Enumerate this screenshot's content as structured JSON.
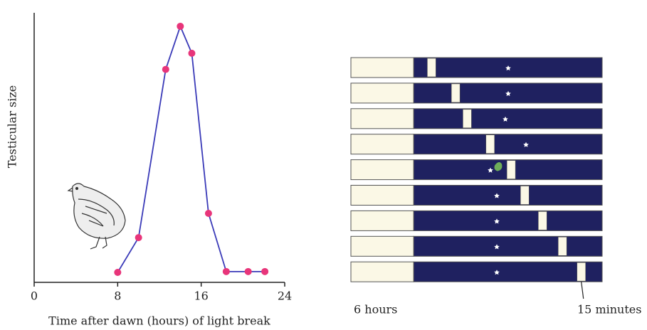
{
  "chart_data": [
    {
      "type": "line",
      "y_label": "Testicular size",
      "x_label": "Time after dawn (hours) of light break",
      "x": [
        8,
        10,
        12.6,
        14,
        15.1,
        16.7,
        18.4,
        20.5,
        22.1
      ],
      "values": [
        3.7,
        16.6,
        79,
        95,
        85,
        25.6,
        4,
        4,
        4
      ],
      "line_color": "#3a3ab8",
      "marker_color": "#e8357a",
      "xlim": [
        0,
        24
      ],
      "xticks": [
        0,
        8,
        16,
        24
      ],
      "ylim": [
        0,
        100
      ]
    },
    {
      "type": "timeline",
      "xlim": [
        0,
        24
      ],
      "light_hours": 6,
      "values": [
        7.3,
        9.6,
        10.7,
        12.9,
        14.9,
        16.2,
        17.9,
        19.8,
        21.6
      ],
      "day_label": "6 hours",
      "break_label": "15 minutes",
      "day_color": "#fbf8e6",
      "night_color": "#1f2160"
    }
  ]
}
